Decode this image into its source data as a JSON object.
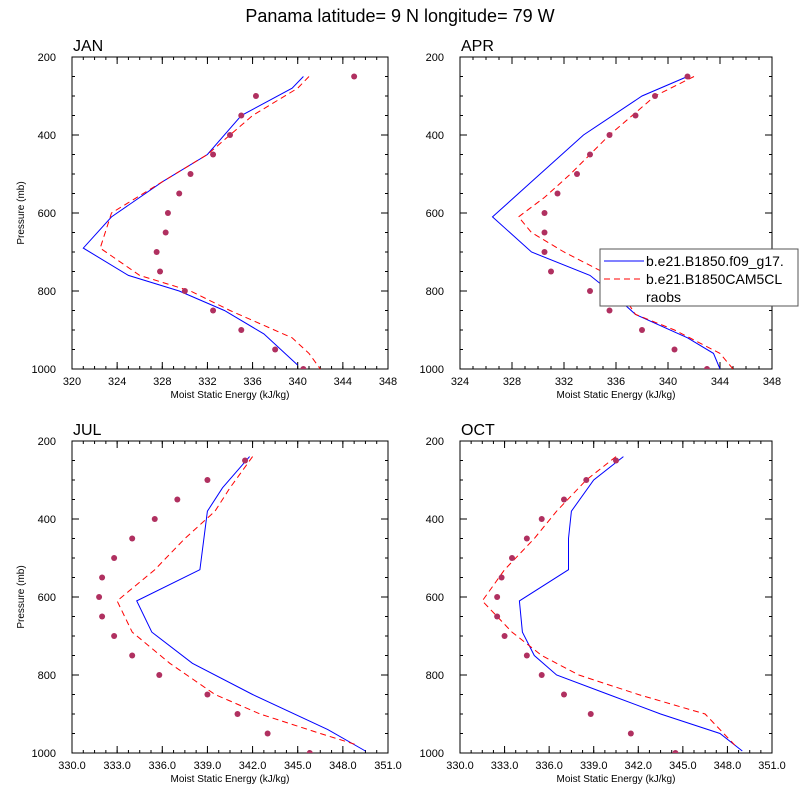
{
  "title": "Panama  latitude= 9 N longitude= 79 W",
  "colors": {
    "model1": "#0000ff",
    "model2": "#ff0000",
    "obs": "#b03060",
    "axis": "#000000"
  },
  "legend": {
    "entries": [
      {
        "label": "b.e21.B1850.f09_g17.",
        "style": "solid",
        "color": "#0000ff"
      },
      {
        "label": "b.e21.B1850CAM5CL",
        "style": "dashed",
        "color": "#ff0000"
      },
      {
        "label": "raobs",
        "style": "dots",
        "color": "#b03060"
      }
    ]
  },
  "chart_data": [
    {
      "type": "line",
      "title": "JAN",
      "xlabel": "Moist Static Energy (kJ/kg)",
      "ylabel": "Pressure (mb)",
      "xlim": [
        320,
        348
      ],
      "ylim": [
        200,
        1000
      ],
      "xticks": [
        320,
        324,
        328,
        332,
        336,
        340,
        344,
        348
      ],
      "xtick_labels": [
        "320",
        "324",
        "328",
        "332",
        "336",
        "340",
        "344",
        "348"
      ],
      "yticks": [
        200,
        400,
        600,
        800,
        1000
      ],
      "ytick_labels": [
        "200",
        "400",
        "600",
        "800",
        "1000"
      ],
      "series": [
        {
          "name": "b.e21.B1850.f09_g17.",
          "style": "solid",
          "x": [
            340.5,
            339.5,
            335.0,
            332.0,
            328.0,
            323.5,
            321.0,
            325.0,
            329.5,
            333.5,
            337.0,
            340.0
          ],
          "y": [
            250,
            280,
            350,
            450,
            520,
            610,
            690,
            760,
            800,
            850,
            910,
            990
          ]
        },
        {
          "name": "b.e21.B1850CAM5CL",
          "style": "dashed",
          "x": [
            341.0,
            340.0,
            336.0,
            332.0,
            328.0,
            323.5,
            322.5,
            326.0,
            330.5,
            334.0,
            339.5,
            341.0,
            342.0
          ],
          "y": [
            250,
            280,
            350,
            450,
            520,
            600,
            690,
            760,
            800,
            850,
            920,
            960,
            1000
          ]
        },
        {
          "name": "raobs",
          "style": "dots",
          "x": [
            345.0,
            336.3,
            335.0,
            334.0,
            332.5,
            330.5,
            329.5,
            328.5,
            328.3,
            327.5,
            327.8,
            330.0,
            332.5,
            335.0,
            338.0,
            340.5
          ],
          "y": [
            250,
            300,
            350,
            400,
            450,
            500,
            550,
            600,
            650,
            700,
            750,
            800,
            850,
            900,
            950,
            1000
          ]
        }
      ]
    },
    {
      "type": "line",
      "title": "APR",
      "xlabel": "Moist Static Energy (kJ/kg)",
      "ylabel": "",
      "xlim": [
        324,
        348
      ],
      "ylim": [
        200,
        1000
      ],
      "xticks": [
        324,
        328,
        332,
        336,
        340,
        344,
        348
      ],
      "xtick_labels": [
        "324",
        "328",
        "332",
        "336",
        "340",
        "344",
        "348"
      ],
      "yticks": [
        200,
        400,
        600,
        800,
        1000
      ],
      "ytick_labels": [
        "200",
        "400",
        "600",
        "800",
        "1000"
      ],
      "series": [
        {
          "name": "b.e21.B1850.f09_g17.",
          "style": "solid",
          "x": [
            341.5,
            338.0,
            333.5,
            329.5,
            326.5,
            329.5,
            334.0,
            335.5,
            337.5,
            341.5,
            343.5,
            344.0
          ],
          "y": [
            250,
            300,
            400,
            520,
            610,
            700,
            760,
            800,
            860,
            920,
            960,
            1000
          ]
        },
        {
          "name": "b.e21.B1850CAM5CL",
          "style": "dashed",
          "x": [
            342.0,
            339.0,
            335.5,
            332.5,
            330.5,
            328.5,
            329.5,
            332.0,
            335.5,
            337.5,
            340.5,
            344.0,
            345.0
          ],
          "y": [
            250,
            300,
            400,
            500,
            560,
            610,
            650,
            700,
            760,
            860,
            900,
            960,
            1000
          ]
        },
        {
          "name": "raobs",
          "style": "dots",
          "x": [
            341.5,
            339.0,
            337.5,
            335.5,
            334.0,
            333.0,
            331.5,
            330.5,
            330.5,
            330.5,
            331.0,
            334.0,
            336.5,
            335.5,
            338.0,
            340.5,
            343.0
          ],
          "y": [
            250,
            300,
            350,
            400,
            450,
            500,
            550,
            600,
            650,
            700,
            750,
            800,
            825,
            850,
            900,
            950,
            1000
          ]
        }
      ]
    },
    {
      "type": "line",
      "title": "JUL",
      "xlabel": "Moist Static Energy (kJ/kg)",
      "ylabel": "Pressure (mb)",
      "xlim": [
        330,
        351
      ],
      "ylim": [
        200,
        1000
      ],
      "xticks": [
        330,
        333,
        336,
        339,
        342,
        345,
        348,
        351
      ],
      "xtick_labels": [
        "330.0",
        "333.0",
        "336.0",
        "339.0",
        "342.0",
        "345.0",
        "348.0",
        "351.0"
      ],
      "yticks": [
        200,
        400,
        600,
        800,
        1000
      ],
      "ytick_labels": [
        "200",
        "400",
        "600",
        "800",
        "1000"
      ],
      "series": [
        {
          "name": "b.e21.B1850.f09_g17.",
          "style": "solid",
          "x": [
            341.8,
            340.0,
            339.0,
            338.5,
            334.3,
            335.3,
            338.0,
            342.0,
            347.0,
            349.5
          ],
          "y": [
            240,
            320,
            380,
            530,
            610,
            690,
            770,
            850,
            940,
            995
          ]
        },
        {
          "name": "b.e21.B1850CAM5CL",
          "style": "dashed",
          "x": [
            342.0,
            340.5,
            339.5,
            337.5,
            335.5,
            333.0,
            334.0,
            336.5,
            339.5,
            342.5,
            346.5,
            349.0
          ],
          "y": [
            240,
            320,
            380,
            450,
            530,
            610,
            690,
            770,
            850,
            900,
            950,
            980
          ]
        },
        {
          "name": "raobs",
          "style": "dots",
          "x": [
            341.5,
            339.0,
            337.0,
            335.5,
            334.0,
            332.8,
            332.0,
            331.8,
            332.0,
            332.8,
            334.0,
            335.8,
            339.0,
            341.0,
            343.0,
            345.8
          ],
          "y": [
            250,
            300,
            350,
            400,
            450,
            500,
            550,
            600,
            650,
            700,
            750,
            800,
            850,
            900,
            950,
            1000
          ]
        }
      ]
    },
    {
      "type": "line",
      "title": "OCT",
      "xlabel": "Moist Static Energy (kJ/kg)",
      "ylabel": "",
      "xlim": [
        330,
        351
      ],
      "ylim": [
        200,
        1000
      ],
      "xticks": [
        330,
        333,
        336,
        339,
        342,
        345,
        348,
        351
      ],
      "xtick_labels": [
        "330.0",
        "333.0",
        "336.0",
        "339.0",
        "342.0",
        "345.0",
        "348.0",
        "351.0"
      ],
      "yticks": [
        200,
        400,
        600,
        800,
        1000
      ],
      "ytick_labels": [
        "200",
        "400",
        "600",
        "800",
        "1000"
      ],
      "series": [
        {
          "name": "b.e21.B1850.f09_g17.",
          "style": "solid",
          "x": [
            341.0,
            339.0,
            337.5,
            337.3,
            337.3,
            334.0,
            334.2,
            335.0,
            336.5,
            340.0,
            343.5,
            347.5,
            349.0
          ],
          "y": [
            240,
            300,
            380,
            450,
            530,
            610,
            690,
            750,
            800,
            850,
            900,
            950,
            995
          ]
        },
        {
          "name": "b.e21.B1850CAM5CL",
          "style": "dashed",
          "x": [
            340.5,
            338.5,
            336.5,
            335.0,
            333.0,
            331.5,
            333.5,
            335.5,
            338.0,
            342.0,
            346.5,
            348.5
          ],
          "y": [
            240,
            300,
            380,
            450,
            530,
            610,
            690,
            750,
            800,
            850,
            900,
            980
          ]
        },
        {
          "name": "raobs",
          "style": "dots",
          "x": [
            340.5,
            338.5,
            337.0,
            335.5,
            334.5,
            333.5,
            332.8,
            332.5,
            332.5,
            333.0,
            334.5,
            335.5,
            337.0,
            338.8,
            341.5,
            344.5
          ],
          "y": [
            250,
            300,
            350,
            400,
            450,
            500,
            550,
            600,
            650,
            700,
            750,
            800,
            850,
            900,
            950,
            1000
          ]
        }
      ]
    }
  ]
}
